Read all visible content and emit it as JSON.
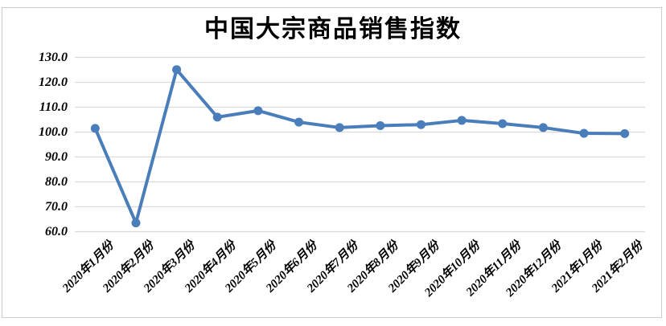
{
  "chart_data": {
    "type": "line",
    "title": "中国大宗商品销售指数",
    "categories": [
      "2020年1月份",
      "2020年2月份",
      "2020年3月份",
      "2020年4月份",
      "2020年5月份",
      "2020年6月份",
      "2020年7月份",
      "2020年8月份",
      "2020年9月份",
      "2020年10月份",
      "2020年11月份",
      "2020年12月份",
      "2021年1月份",
      "2021年2月份"
    ],
    "values": [
      101.5,
      63.5,
      125.1,
      106.0,
      108.6,
      104.0,
      101.8,
      102.6,
      103.0,
      104.7,
      103.4,
      101.8,
      99.5,
      99.4
    ],
    "xlabel": "",
    "ylabel": "",
    "ylim": [
      60,
      130
    ],
    "yticks": [
      130,
      120,
      110,
      100,
      90,
      80,
      70,
      60
    ],
    "ytick_labels": [
      "130.0",
      "120.0",
      "110.0",
      "100.0",
      "90.0",
      "80.0",
      "70.0",
      "60.0"
    ],
    "grid": "horizontal",
    "legend_position": "none",
    "line_color": "#4a7ebb",
    "marker_color": "#4a7ebb",
    "gridline_color": "#d9d9d9",
    "frame_border_color": "#cccccc",
    "text_color": "#000000",
    "background_color": "#ffffff"
  }
}
